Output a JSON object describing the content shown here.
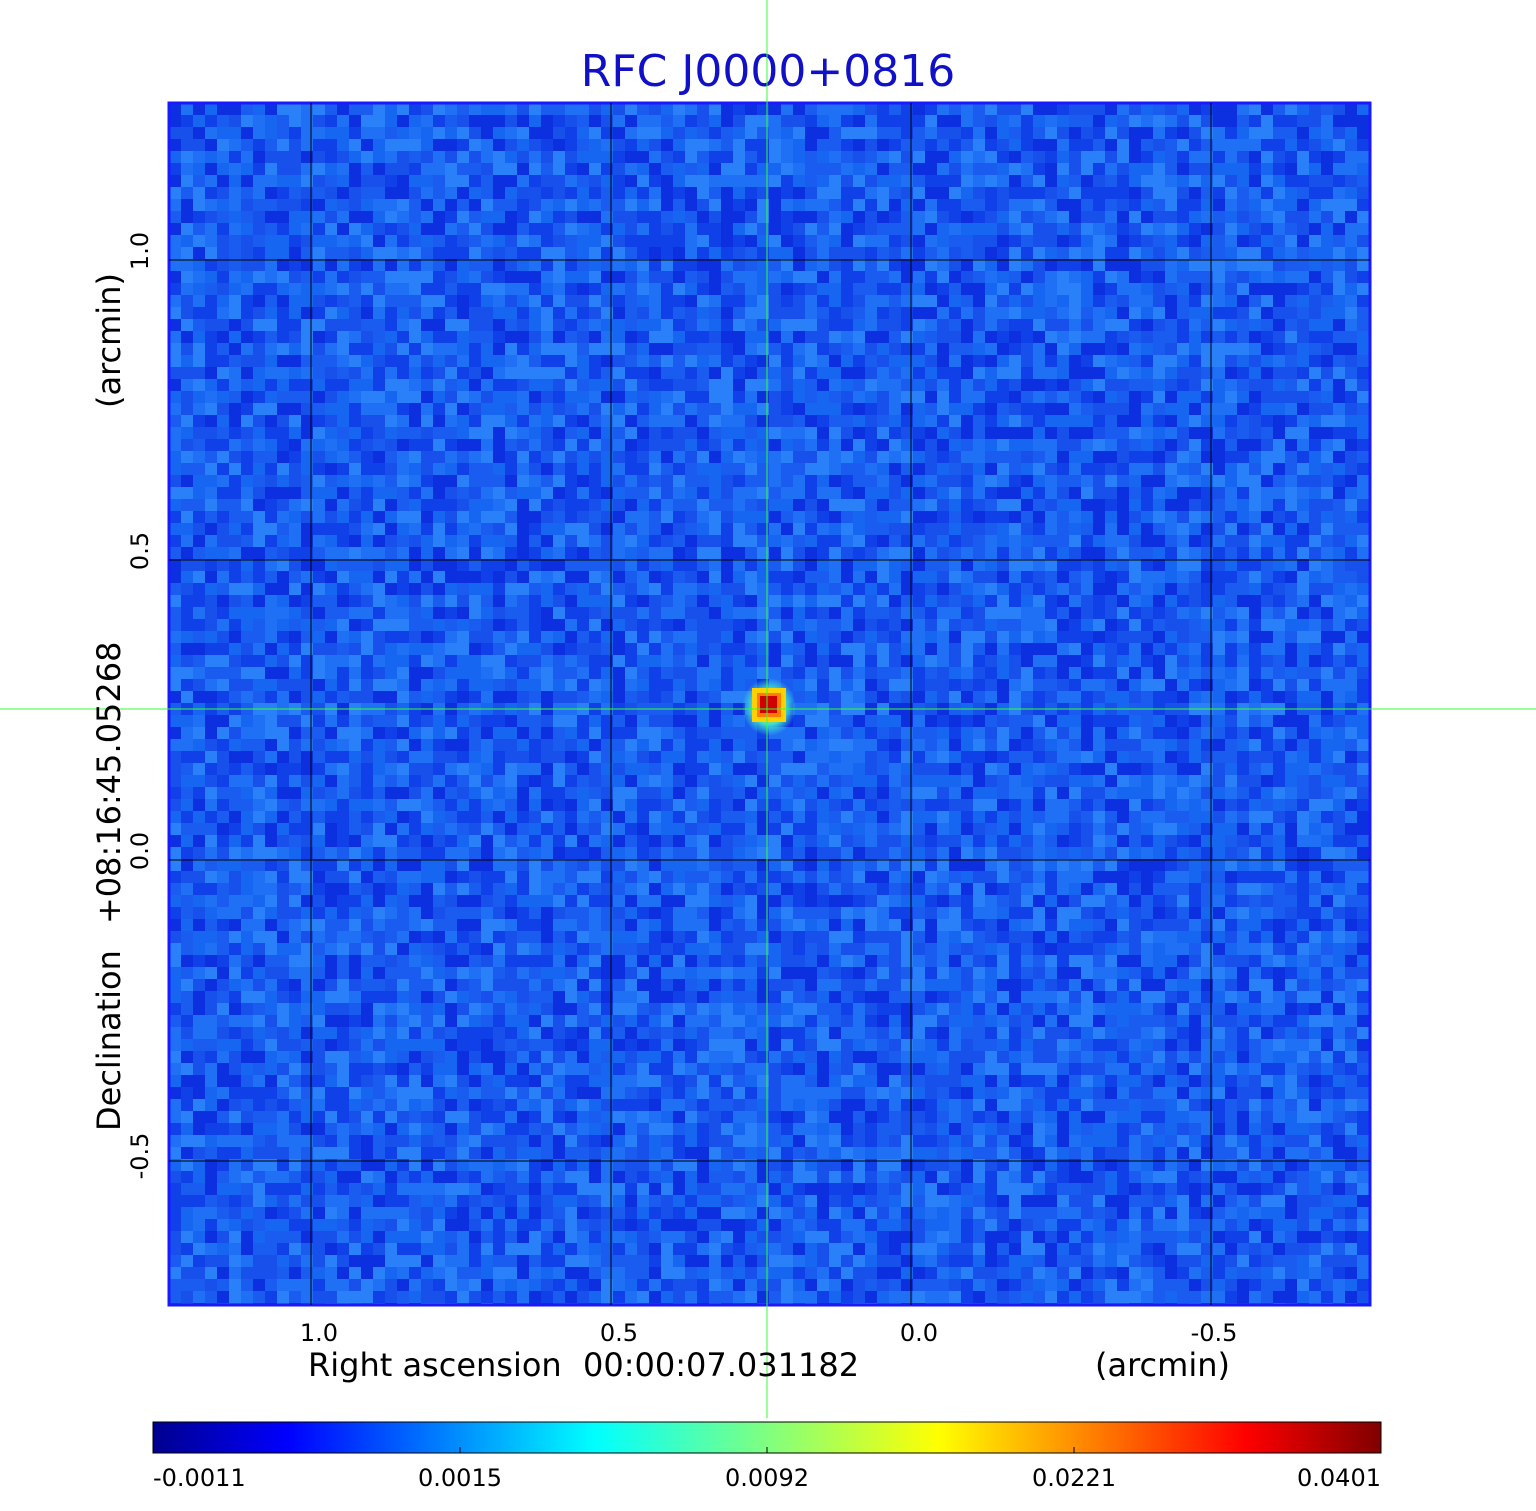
{
  "title": "RFC J0000+0816",
  "x_axis": {
    "label": "Right ascension",
    "center": "00:00:07.031182",
    "unit": "(arcmin)",
    "ticks": [
      "1.0",
      "0.5",
      "0.0",
      "-0.5"
    ]
  },
  "y_axis": {
    "label": "Declination",
    "center": "+08:16:45.05268",
    "unit": "(arcmin)",
    "ticks": [
      "1.0",
      "0.5",
      "0.0",
      "-0.5"
    ]
  },
  "colorbar": {
    "ticks": [
      "-0.0011",
      "0.0015",
      "0.0092",
      "0.0221",
      "0.0401"
    ]
  },
  "colors": {
    "title": "#1010c8",
    "background_map": "#1a5cf0",
    "frame": "#1a1aff",
    "grid": "#000000",
    "crosshair": "#33ff33",
    "peak": "#d00000"
  }
}
